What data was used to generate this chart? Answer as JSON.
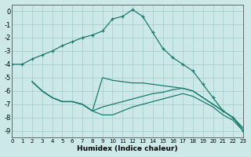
{
  "background_color": "#cce8e8",
  "grid_color": "#aacece",
  "line_color": "#1a7a6e",
  "xlim": [
    0,
    23
  ],
  "ylim": [
    -9.5,
    0.5
  ],
  "yticks": [
    0,
    -1,
    -2,
    -3,
    -4,
    -5,
    -6,
    -7,
    -8,
    -9
  ],
  "xtick_labels": [
    "0",
    "1",
    "2",
    "3",
    "4",
    "5",
    "6",
    "7",
    "8",
    "9",
    "10",
    "11",
    "12",
    "13",
    "14",
    "15",
    "16",
    "17",
    "18",
    "19",
    "20",
    "21",
    "22",
    "23"
  ],
  "xlabel": "Humidex (Indice chaleur)",
  "curve1_x": [
    0,
    1,
    2,
    3,
    4,
    5,
    6,
    7,
    8,
    9,
    10,
    11,
    12,
    13,
    14,
    15,
    16,
    17,
    18,
    19,
    20,
    21,
    22,
    23
  ],
  "curve1_y": [
    -4.0,
    -4.0,
    -3.6,
    -3.3,
    -3.0,
    -2.6,
    -2.3,
    -2.0,
    -1.8,
    -1.5,
    -0.6,
    -0.4,
    0.1,
    -0.4,
    -1.6,
    -2.8,
    -3.5,
    -4.0,
    -4.5,
    -5.5,
    -6.5,
    -7.5,
    -8.0,
    -9.0
  ],
  "curve2_x": [
    2,
    3,
    4,
    5,
    6,
    7,
    8,
    9,
    10,
    11,
    12,
    13,
    14,
    15,
    16,
    17,
    18,
    19,
    20,
    21,
    22,
    23
  ],
  "curve2_y": [
    -5.3,
    -6.0,
    -6.5,
    -6.8,
    -6.8,
    -7.0,
    -7.5,
    -5.0,
    -5.2,
    -5.3,
    -5.4,
    -5.4,
    -5.5,
    -5.6,
    -5.7,
    -5.8,
    -6.0,
    -6.5,
    -7.0,
    -7.5,
    -8.0,
    -8.8
  ],
  "curve3_x": [
    2,
    3,
    4,
    5,
    6,
    7,
    8,
    9,
    10,
    11,
    12,
    13,
    14,
    15,
    16,
    17,
    18,
    19,
    20,
    21,
    22,
    23
  ],
  "curve3_y": [
    -5.3,
    -6.0,
    -6.5,
    -6.8,
    -6.8,
    -7.0,
    -7.5,
    -7.2,
    -7.0,
    -6.8,
    -6.6,
    -6.4,
    -6.2,
    -6.1,
    -5.9,
    -5.8,
    -6.0,
    -6.5,
    -7.0,
    -7.5,
    -8.0,
    -8.8
  ],
  "curve4_x": [
    2,
    3,
    4,
    5,
    6,
    7,
    8,
    9,
    10,
    11,
    12,
    13,
    14,
    15,
    16,
    17,
    18,
    19,
    20,
    21,
    22,
    23
  ],
  "curve4_y": [
    -5.3,
    -6.0,
    -6.5,
    -6.8,
    -6.8,
    -7.0,
    -7.5,
    -7.8,
    -7.8,
    -7.5,
    -7.2,
    -7.0,
    -6.8,
    -6.6,
    -6.4,
    -6.2,
    -6.4,
    -6.8,
    -7.2,
    -7.8,
    -8.2,
    -9.0
  ]
}
